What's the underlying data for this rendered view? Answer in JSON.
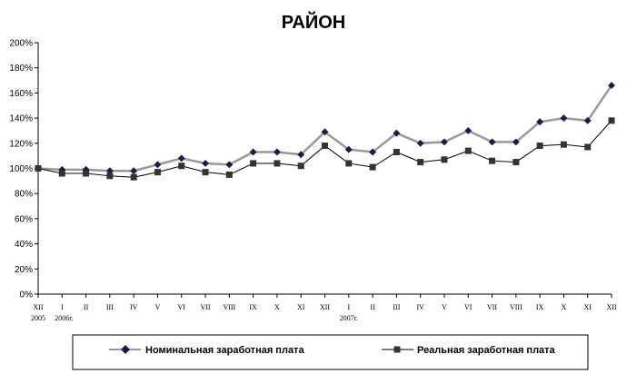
{
  "chart_data": {
    "type": "line",
    "title": "РАЙОН",
    "xlabel": "",
    "ylabel": "",
    "ylim": [
      0,
      200
    ],
    "yticks": [
      "0%",
      "20%",
      "40%",
      "60%",
      "80%",
      "100%",
      "120%",
      "140%",
      "160%",
      "180%",
      "200%"
    ],
    "categories": [
      "XII",
      "I",
      "II",
      "III",
      "IV",
      "V",
      "VI",
      "VII",
      "VIII",
      "IX",
      "X",
      "XI",
      "XII",
      "I",
      "II",
      "III",
      "IV",
      "V",
      "VI",
      "VII",
      "VIII",
      "IX",
      "X",
      "XI",
      "XII"
    ],
    "year_labels": [
      "2005",
      "2006г.",
      "2007г."
    ],
    "grid": false,
    "legend_position": "bottom",
    "series": [
      {
        "name": "Номинальная заработная плата",
        "color": "#999999",
        "marker_color": "#1a1a4e",
        "marker": "diamond",
        "values": [
          100,
          99,
          99,
          98,
          98,
          103,
          108,
          104,
          103,
          113,
          113,
          111,
          129,
          115,
          113,
          128,
          120,
          121,
          130,
          121,
          121,
          137,
          140,
          138,
          166
        ]
      },
      {
        "name": "Реальная заработная плата",
        "color": "#000000",
        "marker_color": "#333333",
        "marker": "square",
        "values": [
          100,
          96,
          96,
          94,
          93,
          97,
          102,
          97,
          95,
          104,
          104,
          102,
          118,
          104,
          101,
          113,
          105,
          107,
          114,
          106,
          105,
          118,
          119,
          117,
          138
        ]
      }
    ]
  }
}
